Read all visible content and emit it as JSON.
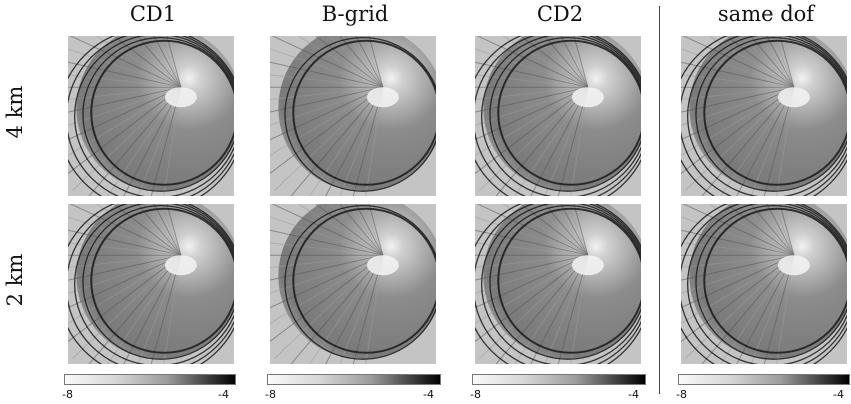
{
  "columns": [
    {
      "title": "CD1"
    },
    {
      "title": "B-grid"
    },
    {
      "title": "CD2"
    },
    {
      "title": "same dof"
    }
  ],
  "rows": [
    {
      "label": "4 km"
    },
    {
      "label": "2 km"
    }
  ],
  "colorbar": {
    "min_label": "-8",
    "max_label": "-4",
    "colors": [
      "#fafafa",
      "#000000"
    ]
  }
}
